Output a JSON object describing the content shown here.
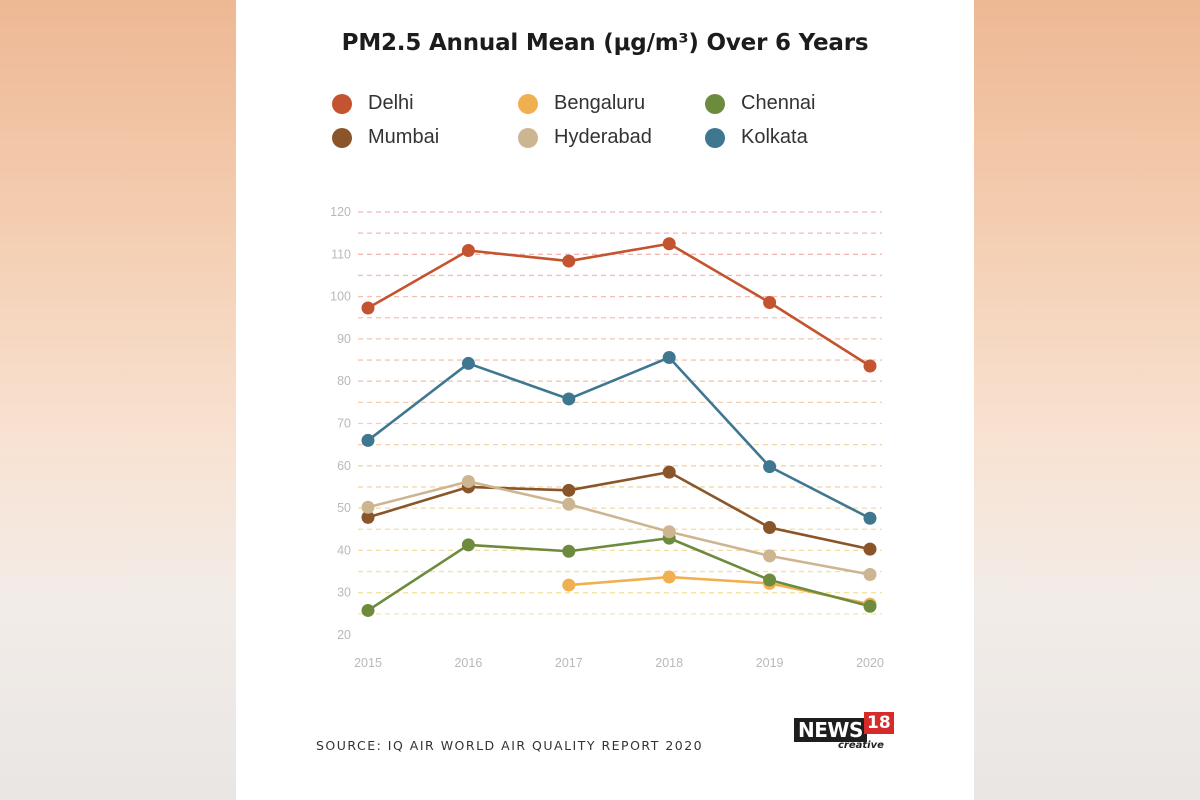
{
  "chart_data": {
    "type": "line",
    "title": "PM2.5 Annual Mean (μg/m³) Over 6 Years",
    "x": [
      2015,
      2016,
      2017,
      2018,
      2019,
      2020
    ],
    "x_tick_labels": [
      "2015",
      "2016",
      "2017",
      "2018",
      "2019",
      "2020"
    ],
    "ylim": [
      20,
      120
    ],
    "y_ticks": [
      20,
      30,
      40,
      50,
      60,
      70,
      80,
      90,
      100,
      110,
      120
    ],
    "grid": "horizontal dashed",
    "legend_position": "top",
    "series": [
      {
        "name": "Delhi",
        "color": "#c4532f",
        "values": [
          97.3,
          110.9,
          108.4,
          112.5,
          98.6,
          83.6
        ]
      },
      {
        "name": "Bengaluru",
        "color": "#f0b050",
        "values": [
          null,
          null,
          31.8,
          33.7,
          32.2,
          27.3
        ]
      },
      {
        "name": "Chennai",
        "color": "#6d8b3d",
        "values": [
          25.8,
          41.3,
          39.8,
          42.9,
          33.0,
          26.8
        ]
      },
      {
        "name": "Mumbai",
        "color": "#8a5529",
        "values": [
          47.8,
          55.0,
          54.2,
          58.5,
          45.4,
          40.3
        ]
      },
      {
        "name": "Hyderabad",
        "color": "#cdb591",
        "values": [
          50.2,
          56.3,
          50.9,
          44.4,
          38.7,
          34.3
        ]
      },
      {
        "name": "Kolkata",
        "color": "#3f7791",
        "values": [
          66.0,
          84.2,
          75.8,
          85.6,
          59.8,
          47.6
        ]
      }
    ]
  },
  "source_text": "SOURCE: IQ AIR WORLD AIR QUALITY REPORT 2020",
  "logo": {
    "brand": "NEWS",
    "number": "18",
    "sub": "creative"
  }
}
